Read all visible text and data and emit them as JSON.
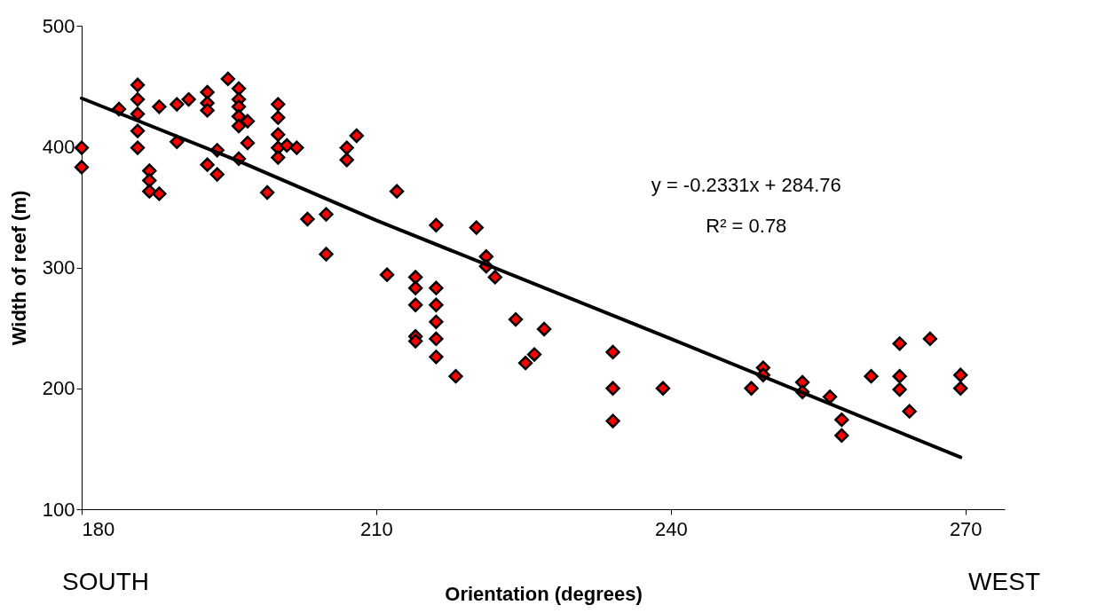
{
  "chart_data": {
    "type": "scatter",
    "xlabel": "Orientation (degrees)",
    "ylabel": "Width of reef (m)",
    "xlim": [
      180,
      274
    ],
    "xticks": [
      180,
      210,
      240,
      270
    ],
    "ylim": [
      100,
      500
    ],
    "yticks": [
      100,
      200,
      300,
      400,
      500
    ],
    "grid": false,
    "marker": "diamond",
    "annotations": [
      "y = -0.2331x + 284.76",
      "R² = 0.78",
      "SOUTH",
      "WEST"
    ],
    "series": [
      {
        "color": "#ff0000",
        "x": [
          180,
          180,
          185.7,
          185.7,
          185.7,
          185.7,
          185.7,
          183.8,
          187.9,
          189.7,
          190.9,
          192.8,
          192.8,
          192.8,
          194.9,
          196.0,
          196.0,
          196.0,
          196.0,
          196.0,
          196.9,
          196.9,
          200.0,
          200.0,
          200.0,
          200.0,
          200.0,
          200.9,
          201.9,
          189.7,
          193.8,
          196.0,
          192.8,
          193.8,
          186.9,
          186.9,
          186.9,
          187.9,
          198.9,
          208.0,
          207.0,
          207.0,
          203.0,
          204.9,
          204.9,
          212.1,
          216.1,
          220.2,
          221.2,
          221.2,
          222.1,
          211.1,
          214.0,
          214.0,
          214.0,
          214.0,
          214.0,
          216.1,
          216.1,
          216.1,
          216.1,
          216.1,
          218.1,
          224.2,
          227.1,
          226.1,
          225.2,
          234.1,
          234.1,
          234.1,
          239.2,
          248.2,
          249.4,
          249.4,
          253.4,
          253.4,
          256.2,
          257.4,
          257.4,
          260.4,
          263.3,
          266.4,
          263.3,
          263.3,
          264.3,
          269.5,
          269.5
        ],
        "values": [
          399,
          383,
          451,
          439,
          427,
          413,
          399,
          431,
          433,
          435,
          439,
          445,
          436,
          430,
          456,
          448,
          439,
          433,
          425,
          417,
          421,
          403,
          435,
          424,
          410,
          399,
          391,
          401,
          399,
          404,
          397,
          390,
          385,
          377,
          380,
          372,
          363,
          361,
          362,
          409,
          399,
          389,
          340,
          344,
          311,
          363,
          335,
          333,
          309,
          301,
          292,
          294,
          292,
          283,
          269,
          243,
          239,
          283,
          269,
          255,
          241,
          226,
          210,
          257,
          249,
          228,
          221,
          230,
          200,
          173,
          200,
          200,
          217,
          211,
          205,
          197,
          193,
          174,
          161,
          210,
          237,
          241,
          210,
          199,
          181,
          211,
          200
        ]
      },
      {
        "type": "line",
        "marker": "none",
        "color": "#000000",
        "x": [
          180,
          196,
          210,
          240,
          269.5
        ],
        "values": [
          440,
          388,
          339,
          241,
          143
        ]
      }
    ]
  }
}
